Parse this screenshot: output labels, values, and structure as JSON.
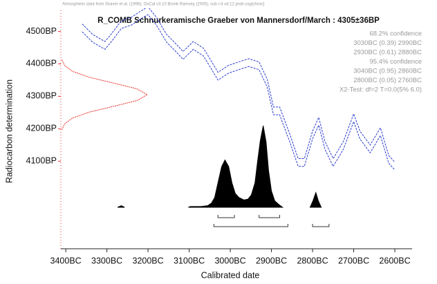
{
  "chart_data": {
    "type": "calibration",
    "header": "Atmospheric data from Stuiver et al. (1998); OxCal v3.10 Bronk Ramsey (2005); cub r:4 sd:12 prob usp[chron]",
    "title": "R_COMB Schnurkeramische Graeber von Mannersdorf/March : 4305±36BP",
    "ylabel": "Radiocarbon determination",
    "xlabel": "Calibrated date",
    "xlim": [
      -3412,
      -2558
    ],
    "ylim": [
      3830,
      4565
    ],
    "xticks": [
      {
        "value": -3400,
        "label": "3400BC"
      },
      {
        "value": -3300,
        "label": "3300BC"
      },
      {
        "value": -3200,
        "label": "3200BC"
      },
      {
        "value": -3100,
        "label": "3100BC"
      },
      {
        "value": -3000,
        "label": "3000BC"
      },
      {
        "value": -2900,
        "label": "2900BC"
      },
      {
        "value": -2800,
        "label": "2800BC"
      },
      {
        "value": -2700,
        "label": "2700BC"
      },
      {
        "value": -2600,
        "label": "2600BC"
      }
    ],
    "yticks": [
      {
        "value": 4100,
        "label": "4100BP"
      },
      {
        "value": 4200,
        "label": "4200BP"
      },
      {
        "value": 4300,
        "label": "4300BP"
      },
      {
        "value": 4400,
        "label": "4400BP"
      },
      {
        "value": 4500,
        "label": "4500BP"
      }
    ],
    "legend_lines": [
      "68.2% confidence",
      "3030BC (0.39) 2990BC",
      "2930BC (0.61) 2880BC",
      "95.4% confidence",
      "3040BC (0.95) 2860BC",
      "2800BC (0.05) 2760BC",
      "X2-Test: df=2 T=0.0(5% 6.0)"
    ],
    "curve_color": "#2a3bd0",
    "curve_x": [
      -3360,
      -3335,
      -3305,
      -3290,
      -3265,
      -3240,
      -3215,
      -3200,
      -3180,
      -3155,
      -3130,
      -3115,
      -3090,
      -3065,
      -3045,
      -3030,
      -3005,
      -2980,
      -2955,
      -2930,
      -2910,
      -2895,
      -2880,
      -2855,
      -2835,
      -2820,
      -2800,
      -2785,
      -2770,
      -2750,
      -2725,
      -2700,
      -2685,
      -2660,
      -2635,
      -2615,
      -2600
    ],
    "curve_upper": [
      4523,
      4491,
      4469,
      4491,
      4533,
      4544,
      4565,
      4576,
      4544,
      4491,
      4459,
      4438,
      4469,
      4448,
      4406,
      4374,
      4395,
      4406,
      4416,
      4406,
      4352,
      4267,
      4267,
      4182,
      4108,
      4108,
      4193,
      4235,
      4161,
      4108,
      4161,
      4246,
      4193,
      4150,
      4203,
      4118,
      4097
    ],
    "curve_lower": [
      4499,
      4467,
      4445,
      4467,
      4509,
      4520,
      4541,
      4552,
      4520,
      4467,
      4435,
      4414,
      4445,
      4424,
      4382,
      4350,
      4371,
      4382,
      4392,
      4382,
      4328,
      4243,
      4243,
      4158,
      4084,
      4084,
      4169,
      4211,
      4137,
      4084,
      4137,
      4222,
      4169,
      4126,
      4179,
      4094,
      4073
    ],
    "measurement": {
      "color": "#e8302a",
      "bp": [
        4197,
        4215,
        4233,
        4251,
        4269,
        4287,
        4305,
        4323,
        4341,
        4359,
        4377,
        4395,
        4413
      ],
      "prob": [
        0.011,
        0.044,
        0.135,
        0.325,
        0.607,
        0.882,
        1,
        0.882,
        0.607,
        0.325,
        0.135,
        0.044,
        0.011
      ]
    },
    "posterior": {
      "color": "#000000",
      "x": [
        -3274,
        -3265,
        -3257,
        null,
        -3102,
        -3097,
        -3072,
        -3055,
        -3046,
        -3038,
        -3030,
        -3021,
        -3013,
        -3004,
        -2996,
        -2988,
        -2979,
        -2967,
        -2957,
        -2949,
        -2940,
        -2934,
        -2927,
        -2920,
        -2913,
        -2907,
        -2900,
        -2892,
        -2881,
        -2873,
        null,
        -2806,
        -2799,
        -2792,
        -2786,
        -2779
      ],
      "prob": [
        0,
        0.02,
        0,
        null,
        0,
        0.01,
        0.01,
        0.02,
        0.05,
        0.12,
        0.3,
        0.5,
        0.58,
        0.5,
        0.3,
        0.17,
        0.12,
        0.09,
        0.1,
        0.15,
        0.3,
        0.55,
        0.82,
        1,
        0.8,
        0.45,
        0.2,
        0.08,
        0.03,
        0,
        null,
        0,
        0.08,
        0.18,
        0.08,
        0
      ]
    },
    "ranges_68": [
      [
        -3030,
        -2990
      ],
      [
        -2930,
        -2880
      ]
    ],
    "ranges_95": [
      [
        -3040,
        -2860
      ],
      [
        -2800,
        -2760
      ]
    ]
  }
}
